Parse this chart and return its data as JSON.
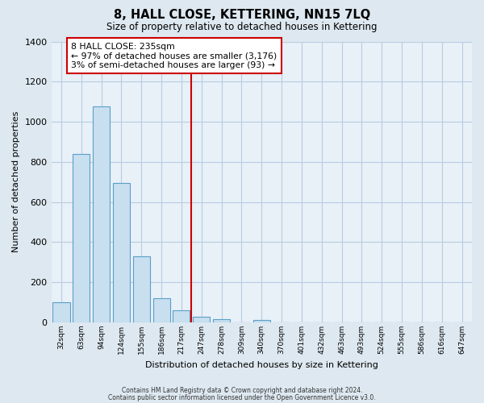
{
  "title": "8, HALL CLOSE, KETTERING, NN15 7LQ",
  "subtitle": "Size of property relative to detached houses in Kettering",
  "xlabel": "Distribution of detached houses by size in Kettering",
  "ylabel": "Number of detached properties",
  "bar_labels": [
    "32sqm",
    "63sqm",
    "94sqm",
    "124sqm",
    "155sqm",
    "186sqm",
    "217sqm",
    "247sqm",
    "278sqm",
    "309sqm",
    "340sqm",
    "370sqm",
    "401sqm",
    "432sqm",
    "463sqm",
    "493sqm",
    "524sqm",
    "555sqm",
    "586sqm",
    "616sqm",
    "647sqm"
  ],
  "bar_values": [
    100,
    838,
    1075,
    693,
    330,
    122,
    62,
    30,
    15,
    0,
    12,
    0,
    0,
    0,
    0,
    0,
    0,
    0,
    0,
    0,
    0
  ],
  "bar_color": "#c8dff0",
  "bar_edge_color": "#5a9fc8",
  "vline_x_index": 7,
  "vline_color": "#cc0000",
  "ylim": [
    0,
    1400
  ],
  "yticks": [
    0,
    200,
    400,
    600,
    800,
    1000,
    1200,
    1400
  ],
  "annotation_title": "8 HALL CLOSE: 235sqm",
  "annotation_line1": "← 97% of detached houses are smaller (3,176)",
  "annotation_line2": "3% of semi-detached houses are larger (93) →",
  "footer1": "Contains HM Land Registry data © Crown copyright and database right 2024.",
  "footer2": "Contains public sector information licensed under the Open Government Licence v3.0.",
  "background_color": "#dde8f0",
  "plot_bg_color": "#e8f0f8",
  "grid_color": "#b8cce0"
}
